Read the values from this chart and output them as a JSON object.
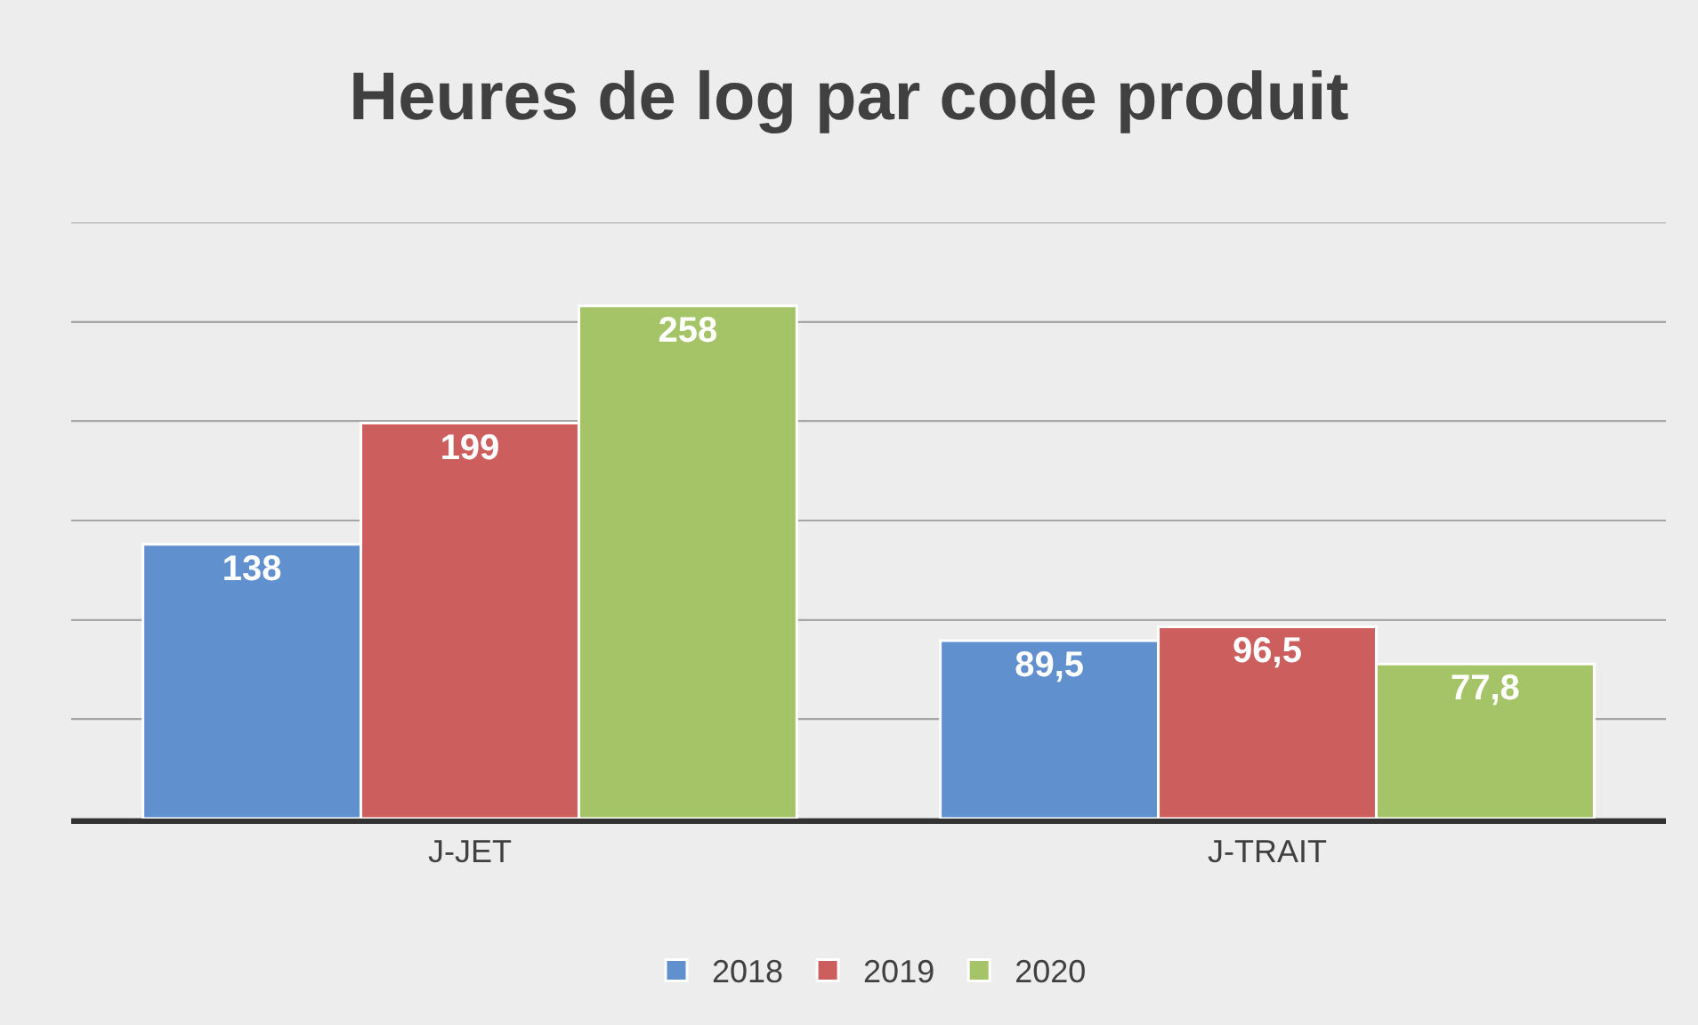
{
  "chart_data": {
    "type": "bar",
    "title": "Heures de log par code produit",
    "categories": [
      "J-JET",
      "J-TRAIT"
    ],
    "series": [
      {
        "name": "2018",
        "color": "#6190cf",
        "values": [
          138,
          89.5
        ],
        "value_labels": [
          "138",
          "89,5"
        ]
      },
      {
        "name": "2019",
        "color": "#cc5f5d",
        "values": [
          199,
          96.5
        ],
        "value_labels": [
          "199",
          "96,5"
        ]
      },
      {
        "name": "2020",
        "color": "#a5c468",
        "values": [
          258,
          77.8
        ],
        "value_labels": [
          "258",
          "77,8"
        ]
      }
    ],
    "ylim": [
      0,
      300
    ],
    "yticks": [
      {
        "value": 0,
        "label": null
      },
      {
        "value": 50,
        "label": null
      },
      {
        "value": 100,
        "label": null
      },
      {
        "value": 150,
        "label": null
      },
      {
        "value": 200,
        "label": null
      },
      {
        "value": 250,
        "label": null
      },
      {
        "value": 300,
        "label": null
      }
    ],
    "tick_labels": "x",
    "grid": "y",
    "legend": "bottom"
  }
}
